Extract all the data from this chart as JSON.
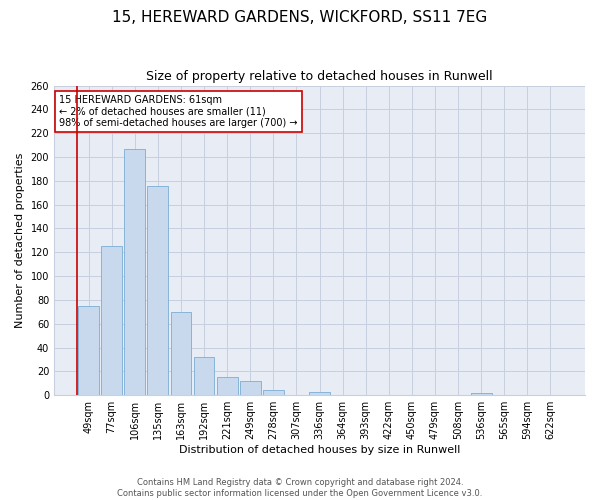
{
  "title": "15, HEREWARD GARDENS, WICKFORD, SS11 7EG",
  "subtitle": "Size of property relative to detached houses in Runwell",
  "xlabel": "Distribution of detached houses by size in Runwell",
  "ylabel": "Number of detached properties",
  "bar_color": "#c8d9ee",
  "bar_edge_color": "#7aadd4",
  "background_color": "#ffffff",
  "axes_bg_color": "#e8edf5",
  "grid_color": "#c8d0df",
  "categories": [
    "49sqm",
    "77sqm",
    "106sqm",
    "135sqm",
    "163sqm",
    "192sqm",
    "221sqm",
    "249sqm",
    "278sqm",
    "307sqm",
    "336sqm",
    "364sqm",
    "393sqm",
    "422sqm",
    "450sqm",
    "479sqm",
    "508sqm",
    "536sqm",
    "565sqm",
    "594sqm",
    "622sqm"
  ],
  "values": [
    75,
    125,
    207,
    176,
    70,
    32,
    15,
    12,
    4,
    0,
    3,
    0,
    0,
    0,
    0,
    0,
    0,
    2,
    0,
    0,
    0
  ],
  "ylim": [
    0,
    260
  ],
  "yticks": [
    0,
    20,
    40,
    60,
    80,
    100,
    120,
    140,
    160,
    180,
    200,
    220,
    240,
    260
  ],
  "marker_color": "#cc0000",
  "annotation_text": "15 HEREWARD GARDENS: 61sqm\n← 2% of detached houses are smaller (11)\n98% of semi-detached houses are larger (700) →",
  "annotation_box_color": "#ffffff",
  "annotation_box_edge": "#cc0000",
  "footer_text": "Contains HM Land Registry data © Crown copyright and database right 2024.\nContains public sector information licensed under the Open Government Licence v3.0.",
  "title_fontsize": 11,
  "subtitle_fontsize": 9,
  "xlabel_fontsize": 8,
  "ylabel_fontsize": 8,
  "tick_fontsize": 7,
  "annot_fontsize": 7,
  "footer_fontsize": 6
}
